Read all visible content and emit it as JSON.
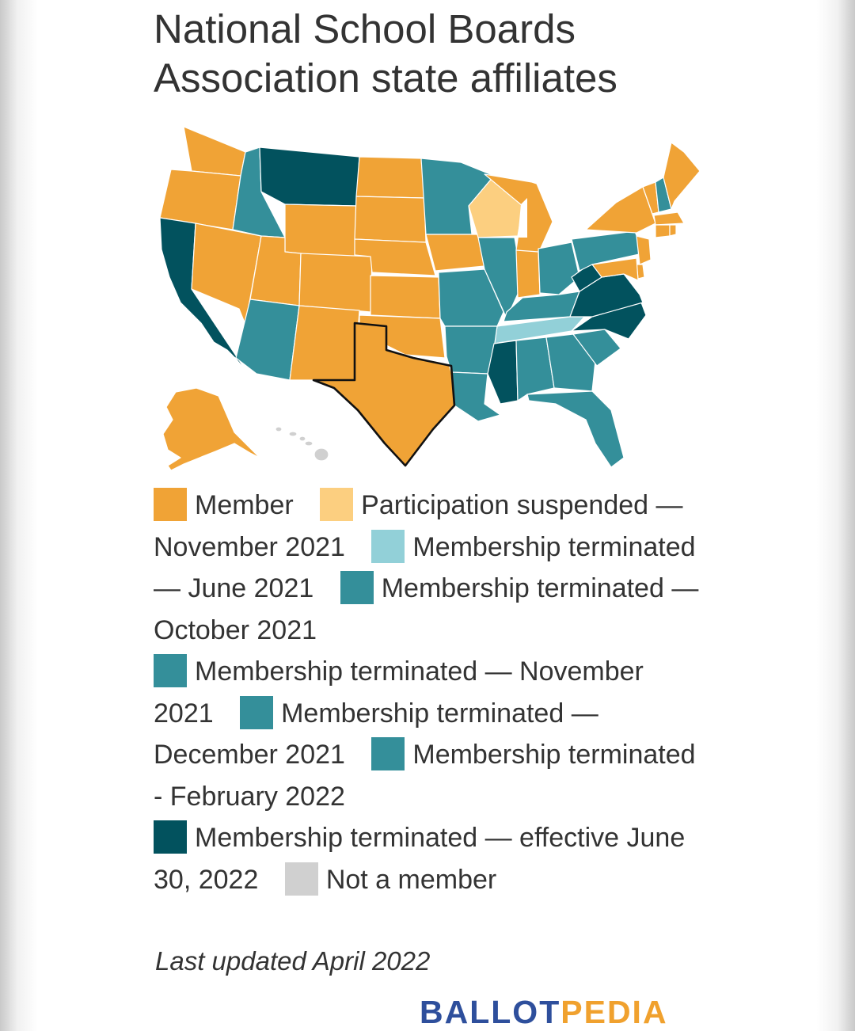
{
  "title": "National School Boards Association state affiliates",
  "colors": {
    "member": "#f0a336",
    "participation_suspended_nov_2021": "#fccf80",
    "terminated_june_2021": "#92d0d8",
    "terminated_oct_2021": "#348f9a",
    "terminated_nov_2021": "#348f9a",
    "terminated_dec_2021": "#348f9a",
    "terminated_feb_2022": "#348f9a",
    "terminated_effective_june_30_2022": "#02525e",
    "not_member": "#d0d0d0"
  },
  "legend": [
    {
      "key": "member",
      "label": "Member"
    },
    {
      "key": "participation_suspended_nov_2021",
      "label": "Participation suspended — November 2021"
    },
    {
      "key": "terminated_june_2021",
      "label": "Membership terminated — June 2021"
    },
    {
      "key": "terminated_oct_2021",
      "label": "Membership terminated — October 2021"
    },
    {
      "key": "terminated_nov_2021",
      "label": "Membership terminated — November 2021"
    },
    {
      "key": "terminated_dec_2021",
      "label": "Membership terminated — December 2021"
    },
    {
      "key": "terminated_feb_2022",
      "label": "Membership terminated - February 2022"
    },
    {
      "key": "terminated_effective_june_30_2022",
      "label": "Membership terminated — effective June 30, 2022"
    },
    {
      "key": "not_member",
      "label": "Not a member"
    }
  ],
  "highlighted_state": "TX",
  "footer": {
    "updated": "Last updated April 2022",
    "brand_part1": "BALLOT",
    "brand_part2": "PEDIA"
  }
}
